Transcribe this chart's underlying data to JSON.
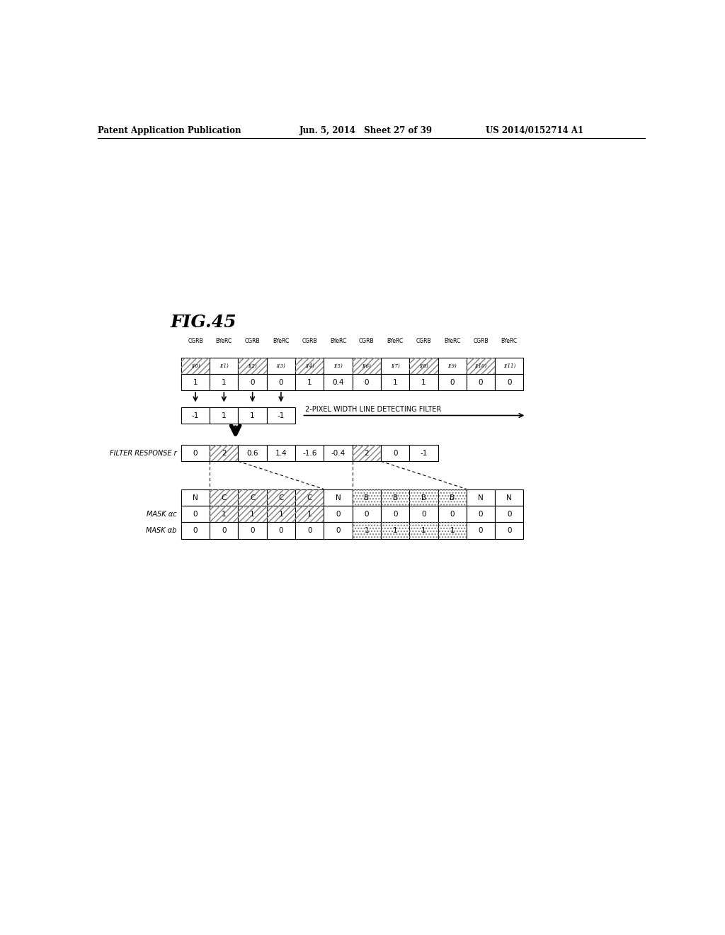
{
  "title": "FIG.45",
  "header_left": "Patent Application Publication",
  "header_mid": "Jun. 5, 2014   Sheet 27 of 39",
  "header_right": "US 2014/0152714 A1",
  "col_labels": [
    "I(0)",
    "I(1)",
    "I(2)",
    "I(3)",
    "I(4)",
    "I(5)",
    "I(6)",
    "I(7)",
    "I(8)",
    "I(9)",
    "I(10)",
    "I(11)"
  ],
  "group_labels": [
    "CGRB",
    "BYeRC",
    "CGRB",
    "BYeRC",
    "CGRB",
    "BYeRC",
    "CGRB",
    "BYeRC",
    "CGRB",
    "BYeRC",
    "CGRB",
    "BYeRC"
  ],
  "row1_values": [
    "1",
    "1",
    "0",
    "0",
    "1",
    "0.4",
    "0",
    "1",
    "1",
    "0",
    "0",
    "0"
  ],
  "filter_values": [
    "-1",
    "1",
    "1",
    "-1"
  ],
  "filter_label": "2-PIXEL WIDTH LINE DETECTING FILTER",
  "response_label": "FILTER RESPONSE r",
  "response_values": [
    "0",
    "2",
    "0.6",
    "1.4",
    "-1.6",
    "-0.4",
    "2",
    "0",
    "-1"
  ],
  "mask_bottom_labels": [
    "N",
    "C",
    "C",
    "C",
    "C",
    "N",
    "B",
    "B",
    "B",
    "B",
    "N",
    "N"
  ],
  "mask_ac_label": "MASK αc",
  "mask_ac_values": [
    "0",
    "1",
    "1",
    "1",
    "1",
    "0",
    "0",
    "0",
    "0",
    "0",
    "0",
    "0"
  ],
  "mask_ab_label": "MASK αb",
  "mask_ab_values": [
    "0",
    "0",
    "0",
    "0",
    "0",
    "0",
    "1",
    "1",
    "1",
    "1",
    "0",
    "0"
  ],
  "hatch_cols_top": [
    0,
    2,
    4,
    6,
    8,
    10
  ],
  "hatch_cols_response": [
    1,
    6
  ],
  "hatch_cols_mask_C": [
    1,
    2,
    3,
    4
  ],
  "hatch_cols_mask_B": [
    6,
    7,
    8,
    9
  ],
  "hatch_cols_mask_ac": [
    1,
    2,
    3,
    4
  ],
  "hatch_cols_mask_ab": [
    6,
    7,
    8,
    9
  ],
  "bg_color": "#ffffff"
}
